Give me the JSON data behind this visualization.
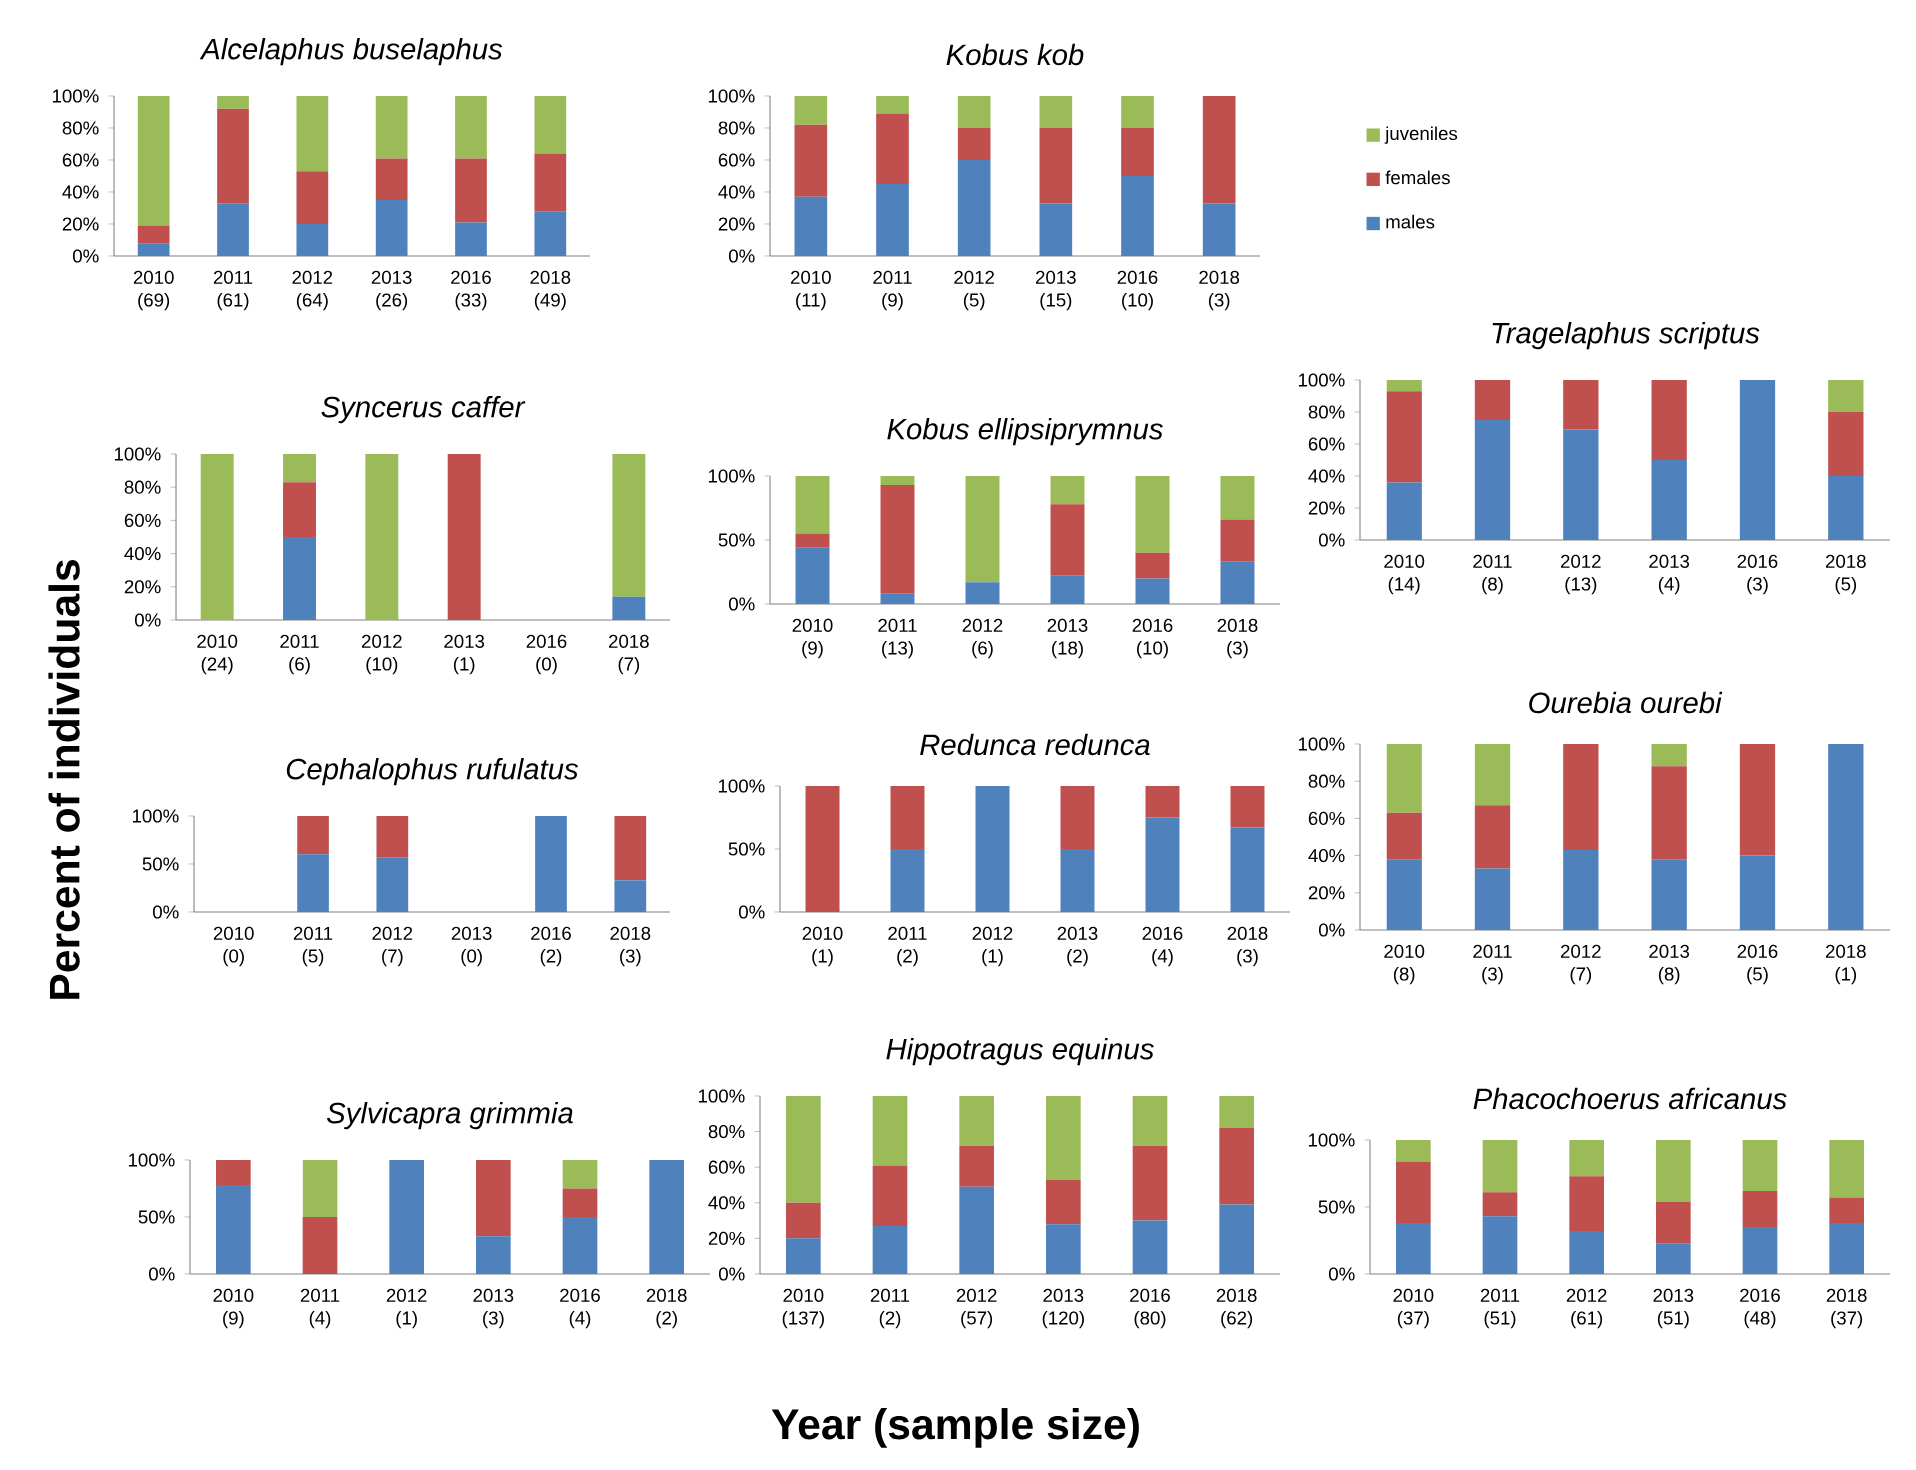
{
  "chart_data": [
    {
      "type": "bar",
      "stacked": true,
      "title": "*Alcelaphus buselaphus*",
      "categories": [
        "2010 (69)",
        "2011 (61)",
        "2012 (64)",
        "2013 (26)",
        "2016 (33)",
        "2018 (49)"
      ],
      "ylim": [
        0,
        100
      ],
      "yticks": [
        {
          "value": 0,
          "label": "0%"
        },
        {
          "value": 20,
          "label": "20%"
        },
        {
          "value": 40,
          "label": "40%"
        },
        {
          "value": 60,
          "label": "60%"
        },
        {
          "value": 80,
          "label": "80%"
        },
        {
          "value": 100,
          "label": "100%"
        }
      ],
      "series": [
        {
          "color": "#4f81bd",
          "values": [
            8,
            33,
            20,
            35,
            21,
            28
          ]
        },
        {
          "color": "#c0504d",
          "values": [
            11,
            59,
            33,
            26,
            40,
            36
          ]
        },
        {
          "color": "#9bbb59",
          "values": [
            81,
            8,
            47,
            39,
            39,
            36
          ]
        }
      ]
    },
    {
      "type": "bar",
      "stacked": true,
      "title": "*Kobus kob*",
      "legend": "right",
      "categories": [
        "2010 (11)",
        "2011 (9)",
        "2012 (5)",
        "2013 (15)",
        "2016 (10)",
        "2018 (3)"
      ],
      "ylim": [
        0,
        100
      ],
      "yticks": [
        {
          "value": 0,
          "label": "0%"
        },
        {
          "value": 20,
          "label": "20%"
        },
        {
          "value": 40,
          "label": "40%"
        },
        {
          "value": 60,
          "label": "60%"
        },
        {
          "value": 80,
          "label": "80%"
        },
        {
          "value": 100,
          "label": "100%"
        }
      ],
      "series": [
        {
          "name": "males",
          "color": "#4f81bd",
          "values": [
            37,
            45,
            60,
            33,
            50,
            33
          ]
        },
        {
          "name": "females",
          "color": "#c0504d",
          "values": [
            45,
            44,
            20,
            47,
            30,
            67
          ]
        },
        {
          "name": "juveniles",
          "color": "#9bbb59",
          "values": [
            18,
            11,
            20,
            20,
            20,
            0
          ]
        }
      ]
    },
    {
      "type": "bar",
      "stacked": true,
      "title": "*Syncerus caffer*",
      "categories": [
        "2010 (24)",
        "2011 (6)",
        "2012 (10)",
        "2013 (1)",
        "2016 (0)",
        "2018 (7)"
      ],
      "ylim": [
        0,
        100
      ],
      "yticks": [
        {
          "value": 0,
          "label": "0%"
        },
        {
          "value": 20,
          "label": "20%"
        },
        {
          "value": 40,
          "label": "40%"
        },
        {
          "value": 60,
          "label": "60%"
        },
        {
          "value": 80,
          "label": "80%"
        },
        {
          "value": 100,
          "label": "100%"
        }
      ],
      "series": [
        {
          "color": "#4f81bd",
          "values": [
            0,
            50,
            0,
            0,
            null,
            14
          ]
        },
        {
          "color": "#c0504d",
          "values": [
            0,
            33,
            0,
            100,
            null,
            0
          ]
        },
        {
          "color": "#9bbb59",
          "values": [
            100,
            17,
            100,
            0,
            null,
            86
          ]
        }
      ]
    },
    {
      "type": "bar",
      "stacked": true,
      "title": "*Kobus ellipsiprymnus*",
      "categories": [
        "2010 (9)",
        "2011 (13)",
        "2012 (6)",
        "2013 (18)",
        "2016 (10)",
        "2018 (3)"
      ],
      "ylim": [
        0,
        100
      ],
      "yticks": [
        {
          "value": 0,
          "label": "0%"
        },
        {
          "value": 50,
          "label": "50%"
        },
        {
          "value": 100,
          "label": "100%"
        }
      ],
      "series": [
        {
          "color": "#4f81bd",
          "values": [
            44,
            8,
            17,
            22,
            20,
            33
          ]
        },
        {
          "color": "#c0504d",
          "values": [
            11,
            85,
            0,
            56,
            20,
            33
          ]
        },
        {
          "color": "#9bbb59",
          "values": [
            45,
            7,
            83,
            22,
            60,
            34
          ]
        }
      ]
    },
    {
      "type": "bar",
      "stacked": true,
      "title": "*Tragelaphus scriptus*",
      "categories": [
        "2010 (14)",
        "2011 (8)",
        "2012 (13)",
        "2013 (4)",
        "2016 (3)",
        "2018 (5)"
      ],
      "ylim": [
        0,
        100
      ],
      "yticks": [
        {
          "value": 0,
          "label": "0%"
        },
        {
          "value": 20,
          "label": "20%"
        },
        {
          "value": 40,
          "label": "40%"
        },
        {
          "value": 60,
          "label": "60%"
        },
        {
          "value": 80,
          "label": "80%"
        },
        {
          "value": 100,
          "label": "100%"
        }
      ],
      "series": [
        {
          "color": "#4f81bd",
          "values": [
            36,
            75,
            69,
            50,
            100,
            40
          ]
        },
        {
          "color": "#c0504d",
          "values": [
            57,
            25,
            31,
            50,
            0,
            40
          ]
        },
        {
          "color": "#9bbb59",
          "values": [
            7,
            0,
            0,
            0,
            0,
            20
          ]
        }
      ]
    },
    {
      "type": "bar",
      "stacked": true,
      "title": "*Cephalophus rufulatus*",
      "ylabel": "Percent of individuals",
      "categories": [
        "2010 (0)",
        "2011 (5)",
        "2012 (7)",
        "2013 (0)",
        "2016 (2)",
        "2018 (3)"
      ],
      "ylim": [
        0,
        100
      ],
      "yticks": [
        {
          "value": 0,
          "label": "0%"
        },
        {
          "value": 50,
          "label": "50%"
        },
        {
          "value": 100,
          "label": "100%"
        }
      ],
      "series": [
        {
          "color": "#4f81bd",
          "values": [
            null,
            60,
            57,
            null,
            100,
            33
          ]
        },
        {
          "color": "#c0504d",
          "values": [
            null,
            40,
            43,
            null,
            0,
            67
          ]
        }
      ]
    },
    {
      "type": "bar",
      "stacked": true,
      "title": "*Redunca redunca*",
      "categories": [
        "2010 (1)",
        "2011 (2)",
        "2012 (1)",
        "2013 (2)",
        "2016 (4)",
        "2018 (3)"
      ],
      "ylim": [
        0,
        100
      ],
      "yticks": [
        {
          "value": 0,
          "label": "0%"
        },
        {
          "value": 50,
          "label": "50%"
        },
        {
          "value": 100,
          "label": "100%"
        }
      ],
      "series": [
        {
          "color": "#4f81bd",
          "values": [
            0,
            50,
            100,
            50,
            75,
            67
          ]
        },
        {
          "color": "#c0504d",
          "values": [
            100,
            50,
            0,
            50,
            25,
            33
          ]
        }
      ]
    },
    {
      "type": "bar",
      "stacked": true,
      "title": "*Ourebia ourebi*",
      "categories": [
        "2010 (8)",
        "2011 (3)",
        "2012 (7)",
        "2013 (8)",
        "2016 (5)",
        "2018 (1)"
      ],
      "ylim": [
        0,
        100
      ],
      "yticks": [
        {
          "value": 0,
          "label": "0%"
        },
        {
          "value": 20,
          "label": "20%"
        },
        {
          "value": 40,
          "label": "40%"
        },
        {
          "value": 60,
          "label": "60%"
        },
        {
          "value": 80,
          "label": "80%"
        },
        {
          "value": 100,
          "label": "100%"
        }
      ],
      "series": [
        {
          "color": "#4f81bd",
          "values": [
            38,
            33,
            43,
            38,
            40,
            100
          ]
        },
        {
          "color": "#c0504d",
          "values": [
            25,
            34,
            57,
            50,
            60,
            0
          ]
        },
        {
          "color": "#9bbb59",
          "values": [
            37,
            33,
            0,
            12,
            0,
            0
          ]
        }
      ]
    },
    {
      "type": "bar",
      "stacked": true,
      "title": "*Sylvicapra grimmia*",
      "categories": [
        "2010 (9)",
        "2011 (4)",
        "2012 (1)",
        "2013 (3)",
        "2016 (4)",
        "2018 (2)"
      ],
      "ylim": [
        0,
        100
      ],
      "yticks": [
        {
          "value": 0,
          "label": "0%"
        },
        {
          "value": 50,
          "label": "50%"
        },
        {
          "value": 100,
          "label": "100%"
        }
      ],
      "series": [
        {
          "color": "#4f81bd",
          "values": [
            78,
            0,
            100,
            33,
            50,
            100
          ]
        },
        {
          "color": "#c0504d",
          "values": [
            22,
            50,
            0,
            67,
            25,
            0
          ]
        },
        {
          "color": "#9bbb59",
          "values": [
            0,
            50,
            0,
            0,
            25,
            0
          ]
        }
      ]
    },
    {
      "type": "bar",
      "stacked": true,
      "title": "*Hippotragus equinus*",
      "xlabel": "Year (sample size)",
      "categories": [
        "2010 (137)",
        "2011 (2)",
        "2012 (57)",
        "2013 (120)",
        "2016 (80)",
        "2018 (62)"
      ],
      "ylim": [
        0,
        100
      ],
      "yticks": [
        {
          "value": 0,
          "label": "0%"
        },
        {
          "value": 20,
          "label": "20%"
        },
        {
          "value": 40,
          "label": "40%"
        },
        {
          "value": 60,
          "label": "60%"
        },
        {
          "value": 80,
          "label": "80%"
        },
        {
          "value": 100,
          "label": "100%"
        }
      ],
      "series": [
        {
          "color": "#4f81bd",
          "values": [
            20,
            27,
            49,
            28,
            30,
            39
          ]
        },
        {
          "color": "#c0504d",
          "values": [
            20,
            34,
            23,
            25,
            42,
            43
          ]
        },
        {
          "color": "#9bbb59",
          "values": [
            60,
            39,
            28,
            47,
            28,
            18
          ]
        }
      ]
    },
    {
      "type": "bar",
      "stacked": true,
      "title": "*Phacochoerus africanus*",
      "categories": [
        "2010 (37)",
        "2011 (51)",
        "2012 (61)",
        "2013 (51)",
        "2016 (48)",
        "2018 (37)"
      ],
      "ylim": [
        0,
        100
      ],
      "yticks": [
        {
          "value": 0,
          "label": "0%"
        },
        {
          "value": 50,
          "label": "50%"
        },
        {
          "value": 100,
          "label": "100%"
        }
      ],
      "series": [
        {
          "color": "#4f81bd",
          "values": [
            38,
            43,
            32,
            23,
            35,
            38
          ]
        },
        {
          "color": "#c0504d",
          "values": [
            46,
            18,
            41,
            31,
            27,
            19
          ]
        },
        {
          "color": "#9bbb59",
          "values": [
            16,
            39,
            27,
            46,
            38,
            43
          ]
        }
      ]
    }
  ]
}
